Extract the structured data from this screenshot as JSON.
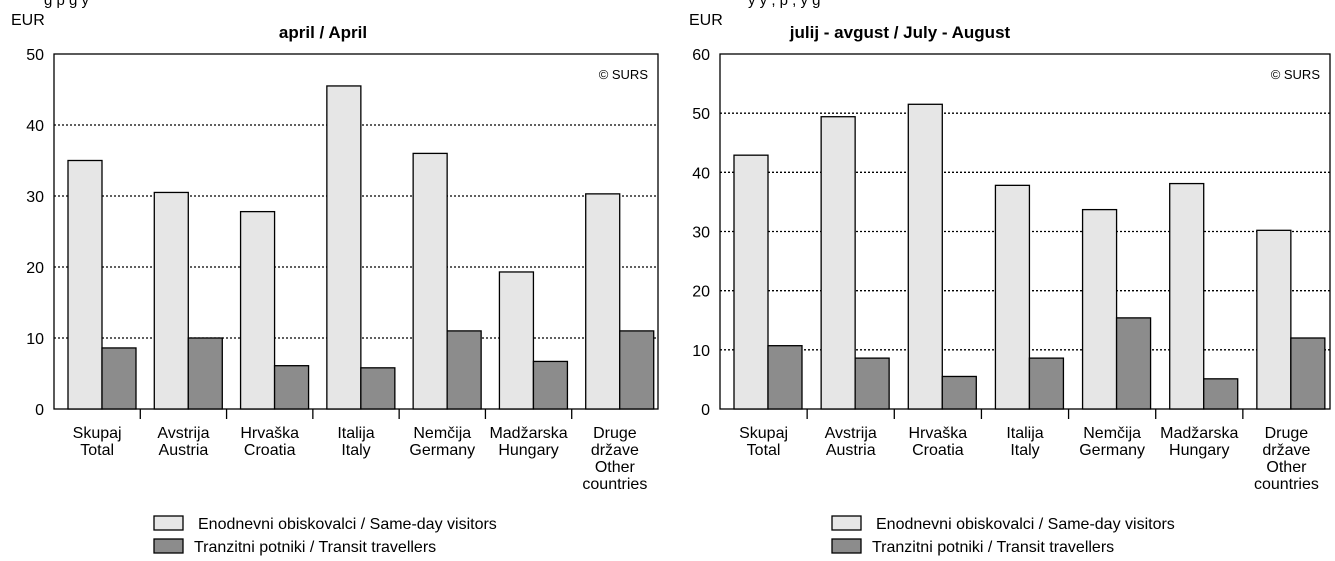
{
  "top_cut_text": {
    "left": "  g      p                      g             y",
    "right": "y     y                  ,   p   ,   y       g"
  },
  "chart_data": [
    {
      "type": "bar",
      "title": "april / April",
      "ylabel": "EUR",
      "ylim": [
        0,
        50
      ],
      "yticks": [
        0,
        10,
        20,
        30,
        40,
        50
      ],
      "grid": true,
      "copyright": "© SURS",
      "categories": [
        [
          "Skupaj",
          "Total"
        ],
        [
          "Avstrija",
          "Austria"
        ],
        [
          "Hrvaška",
          "Croatia"
        ],
        [
          "Italija",
          "Italy"
        ],
        [
          "Nemčija",
          "Germany"
        ],
        [
          "Madžarska",
          "Hungary"
        ],
        [
          "Druge",
          "države",
          "Other",
          "countries"
        ]
      ],
      "series": [
        {
          "name": "Enodnevni obiskovalci / Same-day visitors",
          "color": "#e6e6e6",
          "values": [
            35.0,
            30.5,
            27.8,
            45.5,
            36.0,
            19.3,
            30.3
          ]
        },
        {
          "name": "Tranzitni potniki / Transit travellers",
          "color": "#8c8c8c",
          "values": [
            8.6,
            10.0,
            6.1,
            5.8,
            11.0,
            6.7,
            11.0
          ]
        }
      ],
      "legend_position": "bottom"
    },
    {
      "type": "bar",
      "title": "julij - avgust / July - August",
      "ylabel": "EUR",
      "ylim": [
        0,
        60
      ],
      "yticks": [
        0,
        10,
        20,
        30,
        40,
        50,
        60
      ],
      "grid": true,
      "copyright": "© SURS",
      "categories": [
        [
          "Skupaj",
          "Total"
        ],
        [
          "Avstrija",
          "Austria"
        ],
        [
          "Hrvaška",
          "Croatia"
        ],
        [
          "Italija",
          "Italy"
        ],
        [
          "Nemčija",
          "Germany"
        ],
        [
          "Madžarska",
          "Hungary"
        ],
        [
          "Druge",
          "države",
          "Other",
          "countries"
        ]
      ],
      "series": [
        {
          "name": "Enodnevni obiskovalci / Same-day visitors",
          "color": "#e6e6e6",
          "values": [
            42.9,
            49.4,
            51.5,
            37.8,
            33.7,
            38.1,
            30.2
          ]
        },
        {
          "name": "Tranzitni potniki / Transit travellers",
          "color": "#8c8c8c",
          "values": [
            10.7,
            8.6,
            5.5,
            8.6,
            15.4,
            5.1,
            12.0
          ]
        }
      ],
      "legend_position": "bottom"
    }
  ]
}
